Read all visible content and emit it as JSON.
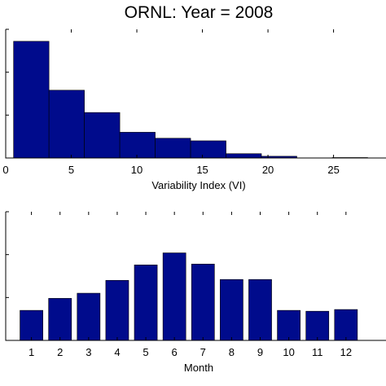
{
  "colors": {
    "bar": "#000b8c",
    "axis": "#000000",
    "background": "#ffffff"
  },
  "chart_data": [
    {
      "type": "bar",
      "title": "ORNL: Year = 2008",
      "xlabel": "Variability Index (VI)",
      "ylabel": "",
      "xlim": [
        0,
        29
      ],
      "ylim": [
        0,
        150
      ],
      "x_ticks": [
        "0",
        "5",
        "10",
        "15",
        "20",
        "25"
      ],
      "y_ticks_labeled": false,
      "bins": [
        {
          "x0": 0.6,
          "x1": 3.3,
          "value": 136
        },
        {
          "x0": 3.3,
          "x1": 6.0,
          "value": 79
        },
        {
          "x0": 6.0,
          "x1": 8.7,
          "value": 53
        },
        {
          "x0": 8.7,
          "x1": 11.4,
          "value": 30
        },
        {
          "x0": 11.4,
          "x1": 14.1,
          "value": 23
        },
        {
          "x0": 14.1,
          "x1": 16.8,
          "value": 20
        },
        {
          "x0": 16.8,
          "x1": 19.5,
          "value": 5
        },
        {
          "x0": 19.5,
          "x1": 22.2,
          "value": 2
        },
        {
          "x0": 22.2,
          "x1": 24.9,
          "value": 0
        },
        {
          "x0": 24.9,
          "x1": 27.6,
          "value": 0.5
        }
      ]
    },
    {
      "type": "bar",
      "title": "",
      "xlabel": "Month",
      "ylabel": "",
      "categories": [
        "1",
        "2",
        "3",
        "4",
        "5",
        "6",
        "7",
        "8",
        "9",
        "10",
        "11",
        "12"
      ],
      "values": [
        35,
        49,
        55,
        70,
        88,
        102,
        89,
        71,
        71,
        35,
        34,
        36
      ],
      "ylim": [
        0,
        150
      ],
      "y_ticks_labeled": false
    }
  ]
}
